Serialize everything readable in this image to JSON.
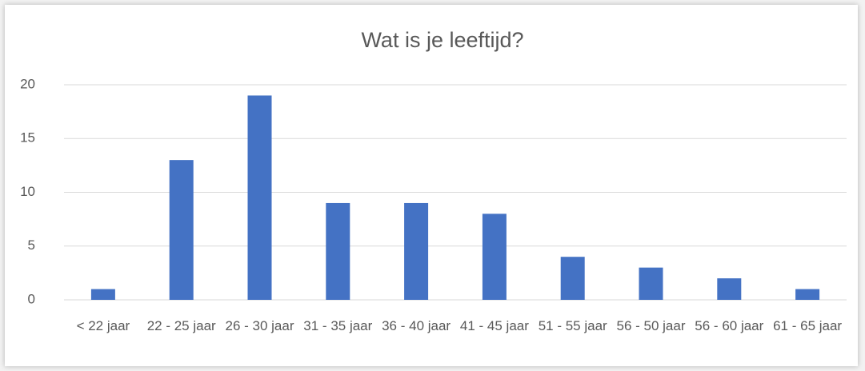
{
  "chart_data": {
    "type": "bar",
    "title": "Wat is je leeftijd?",
    "categories": [
      "< 22 jaar",
      "22 - 25 jaar",
      "26 - 30 jaar",
      "31 - 35 jaar",
      "36 - 40 jaar",
      "41 - 45 jaar",
      "51 - 55 jaar",
      "56 - 50 jaar",
      "56 - 60 jaar",
      "61 - 65 jaar"
    ],
    "values": [
      1,
      13,
      19,
      9,
      9,
      8,
      4,
      3,
      2,
      1
    ],
    "color": "#4472c4",
    "ylim": [
      0,
      20
    ],
    "yticks": [
      0,
      5,
      10,
      15,
      20
    ],
    "grid": true
  }
}
